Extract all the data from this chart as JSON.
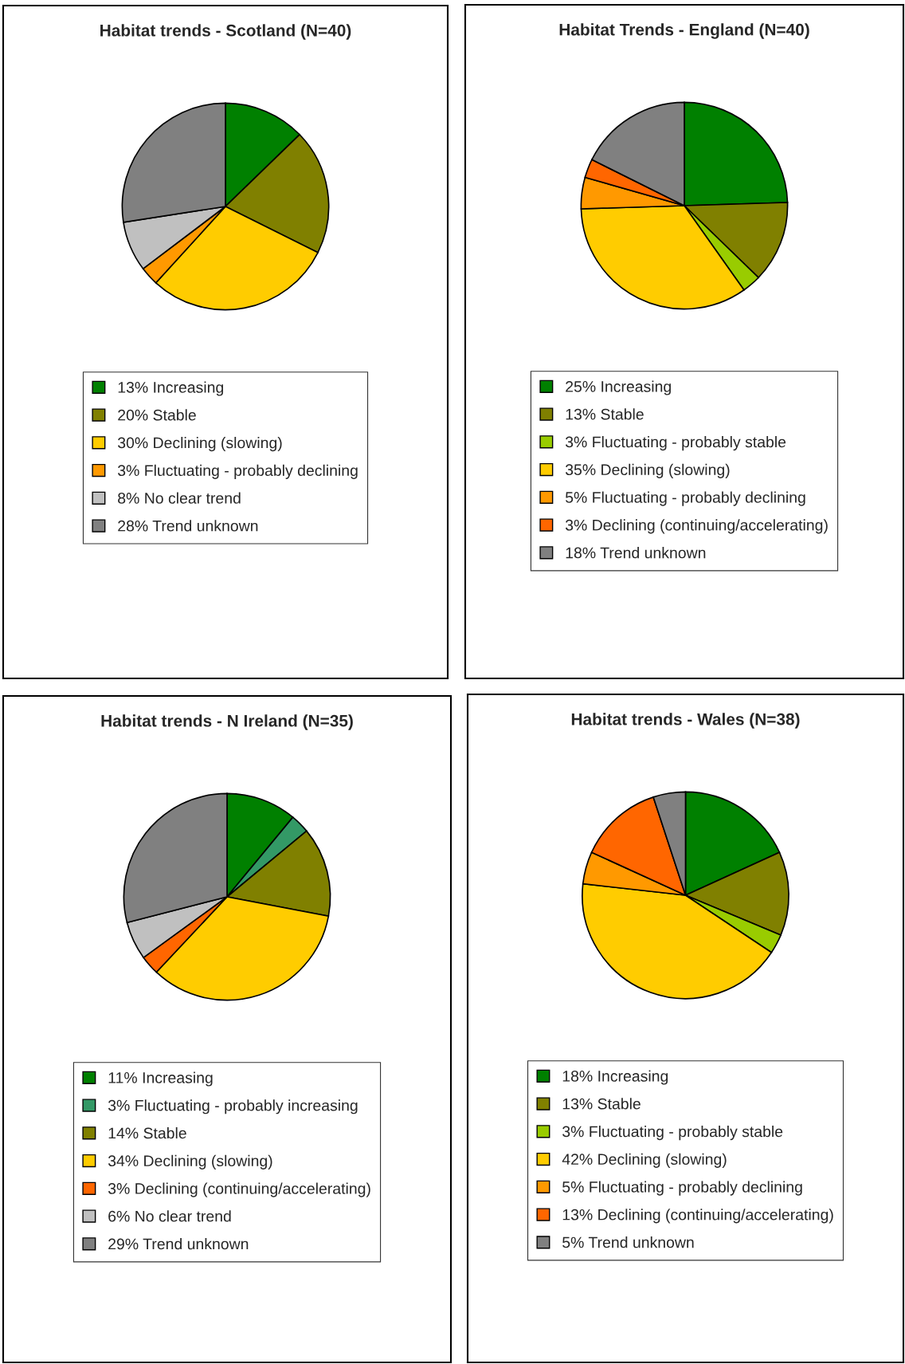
{
  "chart_data": [
    {
      "type": "pie",
      "title": "Habitat trends - Scotland (N=40)",
      "legend": "bottom",
      "categories": [
        "13% Increasing",
        "20% Stable",
        "30% Declining (slowing)",
        "3% Fluctuating - probably declining",
        "8% No clear trend",
        "28% Trend unknown"
      ],
      "values": [
        13,
        20,
        30,
        3,
        8,
        28
      ],
      "colors": [
        "#008000",
        "#808000",
        "#ffcc00",
        "#ff9900",
        "#c0c0c0",
        "#808080"
      ]
    },
    {
      "type": "pie",
      "title": "Habitat Trends - England (N=40)",
      "legend": "bottom",
      "categories": [
        "25% Increasing",
        "13% Stable",
        "3% Fluctuating - probably stable",
        "35% Declining (slowing)",
        "5% Fluctuating - probably declining",
        "3% Declining (continuing/accelerating)",
        "18% Trend unknown"
      ],
      "values": [
        25,
        13,
        3,
        35,
        5,
        3,
        18
      ],
      "colors": [
        "#008000",
        "#808000",
        "#99cc00",
        "#ffcc00",
        "#ff9900",
        "#ff6600",
        "#808080"
      ]
    },
    {
      "type": "pie",
      "title": "Habitat trends - N Ireland (N=35)",
      "legend": "bottom",
      "categories": [
        "11% Increasing",
        "3% Fluctuating - probably increasing",
        "14% Stable",
        "34% Declining (slowing)",
        "3% Declining (continuing/accelerating)",
        "6% No clear trend",
        "29% Trend unknown"
      ],
      "values": [
        11,
        3,
        14,
        34,
        3,
        6,
        29
      ],
      "colors": [
        "#008000",
        "#339966",
        "#808000",
        "#ffcc00",
        "#ff6600",
        "#c0c0c0",
        "#808080"
      ]
    },
    {
      "type": "pie",
      "title": "Habitat trends - Wales (N=38)",
      "legend": "bottom",
      "categories": [
        "18% Increasing",
        "13% Stable",
        "3% Fluctuating - probably stable",
        "42% Declining (slowing)",
        "5% Fluctuating - probably declining",
        "13% Declining (continuing/accelerating)",
        "5% Trend unknown"
      ],
      "values": [
        18,
        13,
        3,
        42,
        5,
        13,
        5
      ],
      "colors": [
        "#008000",
        "#808000",
        "#99cc00",
        "#ffcc00",
        "#ff9900",
        "#ff6600",
        "#808080"
      ]
    }
  ]
}
